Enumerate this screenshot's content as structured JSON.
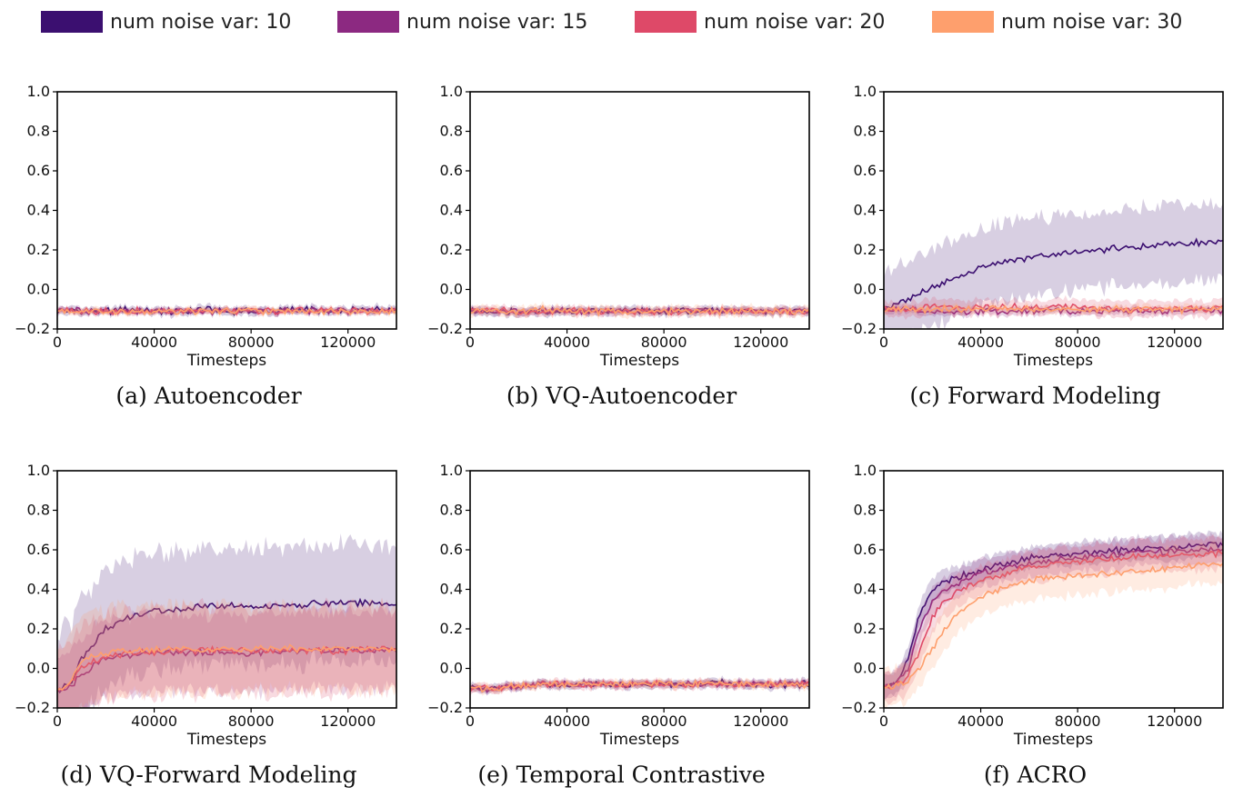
{
  "legend": {
    "items": [
      {
        "label": "num noise var: 10",
        "color": "#3b0f70"
      },
      {
        "label": "num noise var: 15",
        "color": "#8c2981"
      },
      {
        "label": "num noise var: 20",
        "color": "#de4968"
      },
      {
        "label": "num noise var: 30",
        "color": "#fe9f6d"
      }
    ]
  },
  "chart_data": [
    {
      "type": "line",
      "caption": "(a) Autoencoder",
      "xlabel": "Timesteps",
      "xlim": [
        0,
        140000
      ],
      "ylim": [
        -0.2,
        1.0
      ],
      "xticks": [
        "0",
        "40000",
        "80000",
        "120000"
      ],
      "yticks": [
        "1.0",
        "0.8",
        "0.6",
        "0.4",
        "0.2",
        "0.0",
        "−0.2"
      ],
      "x": [
        0,
        10000,
        20000,
        30000,
        40000,
        50000,
        60000,
        70000,
        80000,
        90000,
        100000,
        110000,
        120000,
        130000,
        140000
      ],
      "series": [
        {
          "values": [
            -0.11,
            -0.11,
            -0.11,
            -0.1,
            -0.11,
            -0.11,
            -0.1,
            -0.11,
            -0.11,
            -0.11,
            -0.1,
            -0.11,
            -0.11,
            -0.1,
            -0.1
          ],
          "band": 0.02
        },
        {
          "values": [
            -0.11,
            -0.11,
            -0.11,
            -0.11,
            -0.11,
            -0.11,
            -0.11,
            -0.11,
            -0.11,
            -0.11,
            -0.11,
            -0.11,
            -0.11,
            -0.11,
            -0.11
          ],
          "band": 0.015
        },
        {
          "values": [
            -0.11,
            -0.11,
            -0.11,
            -0.11,
            -0.11,
            -0.11,
            -0.11,
            -0.11,
            -0.11,
            -0.11,
            -0.11,
            -0.11,
            -0.11,
            -0.11,
            -0.11
          ],
          "band": 0.015
        },
        {
          "values": [
            -0.11,
            -0.11,
            -0.11,
            -0.11,
            -0.11,
            -0.11,
            -0.11,
            -0.11,
            -0.11,
            -0.11,
            -0.11,
            -0.11,
            -0.11,
            -0.11,
            -0.11
          ],
          "band": 0.015
        }
      ]
    },
    {
      "type": "line",
      "caption": "(b) VQ-Autoencoder",
      "xlabel": "Timesteps",
      "xlim": [
        0,
        140000
      ],
      "ylim": [
        -0.2,
        1.0
      ],
      "xticks": [
        "0",
        "40000",
        "80000",
        "120000"
      ],
      "yticks": [
        "1.0",
        "0.8",
        "0.6",
        "0.4",
        "0.2",
        "0.0",
        "−0.2"
      ],
      "x": [
        0,
        10000,
        20000,
        30000,
        40000,
        50000,
        60000,
        70000,
        80000,
        90000,
        100000,
        110000,
        120000,
        130000,
        140000
      ],
      "series": [
        {
          "values": [
            -0.11,
            -0.11,
            -0.11,
            -0.11,
            -0.11,
            -0.1,
            -0.11,
            -0.11,
            -0.11,
            -0.11,
            -0.11,
            -0.1,
            -0.11,
            -0.11,
            -0.11
          ],
          "band": 0.02
        },
        {
          "values": [
            -0.11,
            -0.11,
            -0.11,
            -0.11,
            -0.11,
            -0.11,
            -0.11,
            -0.11,
            -0.11,
            -0.11,
            -0.11,
            -0.11,
            -0.11,
            -0.11,
            -0.11
          ],
          "band": 0.02
        },
        {
          "values": [
            -0.11,
            -0.11,
            -0.11,
            -0.11,
            -0.11,
            -0.11,
            -0.11,
            -0.11,
            -0.11,
            -0.11,
            -0.11,
            -0.11,
            -0.11,
            -0.11,
            -0.11
          ],
          "band": 0.02
        },
        {
          "values": [
            -0.11,
            -0.11,
            -0.11,
            -0.1,
            -0.11,
            -0.11,
            -0.11,
            -0.11,
            -0.11,
            -0.11,
            -0.11,
            -0.11,
            -0.11,
            -0.11,
            -0.11
          ],
          "band": 0.025
        }
      ]
    },
    {
      "type": "line",
      "caption": "(c) Forward Modeling",
      "xlabel": "Timesteps",
      "xlim": [
        0,
        140000
      ],
      "ylim": [
        -0.2,
        1.0
      ],
      "xticks": [
        "0",
        "40000",
        "80000",
        "120000"
      ],
      "yticks": [
        "1.0",
        "0.8",
        "0.6",
        "0.4",
        "0.2",
        "0.0",
        "−0.2"
      ],
      "x": [
        0,
        10000,
        20000,
        30000,
        40000,
        50000,
        60000,
        70000,
        80000,
        90000,
        100000,
        110000,
        120000,
        130000,
        140000
      ],
      "series": [
        {
          "values": [
            -0.1,
            -0.05,
            0.01,
            0.06,
            0.11,
            0.14,
            0.16,
            0.18,
            0.19,
            0.2,
            0.21,
            0.22,
            0.23,
            0.24,
            0.25
          ],
          "band": 0.2
        },
        {
          "values": [
            -0.1,
            -0.1,
            -0.11,
            -0.11,
            -0.11,
            -0.11,
            -0.11,
            -0.11,
            -0.11,
            -0.11,
            -0.11,
            -0.11,
            -0.11,
            -0.11,
            -0.11
          ],
          "band": 0.02
        },
        {
          "values": [
            -0.1,
            -0.1,
            -0.09,
            -0.09,
            -0.09,
            -0.09,
            -0.09,
            -0.09,
            -0.09,
            -0.09,
            -0.1,
            -0.1,
            -0.1,
            -0.1,
            -0.1
          ],
          "band": 0.04
        },
        {
          "values": [
            -0.1,
            -0.1,
            -0.1,
            -0.1,
            -0.09,
            -0.1,
            -0.1,
            -0.1,
            -0.1,
            -0.1,
            -0.1,
            -0.1,
            -0.1,
            -0.1,
            -0.1
          ],
          "band": 0.02
        }
      ]
    },
    {
      "type": "line",
      "caption": "(d) VQ-Forward Modeling",
      "xlabel": "Timesteps",
      "xlim": [
        0,
        140000
      ],
      "ylim": [
        -0.2,
        1.0
      ],
      "xticks": [
        "0",
        "40000",
        "80000",
        "120000"
      ],
      "yticks": [
        "1.0",
        "0.8",
        "0.6",
        "0.4",
        "0.2",
        "0.0",
        "−0.2"
      ],
      "x": [
        0,
        5000,
        10000,
        20000,
        30000,
        40000,
        50000,
        60000,
        70000,
        80000,
        90000,
        100000,
        110000,
        120000,
        130000,
        140000
      ],
      "series": [
        {
          "values": [
            -0.11,
            -0.09,
            0.05,
            0.2,
            0.26,
            0.29,
            0.3,
            0.31,
            0.32,
            0.31,
            0.32,
            0.32,
            0.33,
            0.33,
            0.33,
            0.32
          ],
          "band": 0.3
        },
        {
          "values": [
            -0.11,
            -0.1,
            -0.03,
            0.05,
            0.07,
            0.08,
            0.08,
            0.08,
            0.08,
            0.08,
            0.09,
            0.09,
            0.09,
            0.09,
            0.09,
            0.09
          ],
          "band": 0.2
        },
        {
          "values": [
            -0.11,
            -0.09,
            0.01,
            0.06,
            0.08,
            0.08,
            0.09,
            0.09,
            0.09,
            0.09,
            0.09,
            0.09,
            0.09,
            0.09,
            0.1,
            0.1
          ],
          "band": 0.22
        },
        {
          "values": [
            -0.11,
            -0.08,
            0.04,
            0.08,
            0.09,
            0.09,
            0.1,
            0.09,
            0.1,
            0.1,
            0.1,
            0.1,
            0.1,
            0.1,
            0.1,
            0.1
          ],
          "band": 0.22
        }
      ]
    },
    {
      "type": "line",
      "caption": "(e) Temporal Contrastive",
      "xlabel": "Timesteps",
      "xlim": [
        0,
        140000
      ],
      "ylim": [
        -0.2,
        1.0
      ],
      "xticks": [
        "0",
        "40000",
        "80000",
        "120000"
      ],
      "yticks": [
        "1.0",
        "0.8",
        "0.6",
        "0.4",
        "0.2",
        "0.0",
        "−0.2"
      ],
      "x": [
        0,
        10000,
        20000,
        30000,
        40000,
        50000,
        60000,
        70000,
        80000,
        90000,
        100000,
        110000,
        120000,
        130000,
        140000
      ],
      "series": [
        {
          "values": [
            -0.1,
            -0.1,
            -0.09,
            -0.08,
            -0.08,
            -0.08,
            -0.08,
            -0.08,
            -0.08,
            -0.08,
            -0.07,
            -0.08,
            -0.08,
            -0.08,
            -0.08
          ],
          "band": 0.02
        },
        {
          "values": [
            -0.1,
            -0.1,
            -0.09,
            -0.08,
            -0.08,
            -0.08,
            -0.08,
            -0.08,
            -0.08,
            -0.08,
            -0.08,
            -0.08,
            -0.08,
            -0.08,
            -0.08
          ],
          "band": 0.02
        },
        {
          "values": [
            -0.1,
            -0.1,
            -0.09,
            -0.08,
            -0.08,
            -0.08,
            -0.08,
            -0.08,
            -0.08,
            -0.08,
            -0.08,
            -0.08,
            -0.08,
            -0.08,
            -0.07
          ],
          "band": 0.02
        },
        {
          "values": [
            -0.1,
            -0.1,
            -0.09,
            -0.08,
            -0.08,
            -0.07,
            -0.08,
            -0.08,
            -0.08,
            -0.08,
            -0.08,
            -0.08,
            -0.08,
            -0.08,
            -0.08
          ],
          "band": 0.02
        }
      ]
    },
    {
      "type": "line",
      "caption": "(f) ACRO",
      "xlabel": "Timesteps",
      "xlim": [
        0,
        140000
      ],
      "ylim": [
        -0.2,
        1.0
      ],
      "xticks": [
        "0",
        "40000",
        "80000",
        "120000"
      ],
      "yticks": [
        "1.0",
        "0.8",
        "0.6",
        "0.4",
        "0.2",
        "0.0",
        "−0.2"
      ],
      "x": [
        0,
        5000,
        10000,
        15000,
        20000,
        25000,
        30000,
        40000,
        50000,
        60000,
        70000,
        80000,
        90000,
        100000,
        110000,
        120000,
        130000,
        140000
      ],
      "series": [
        {
          "values": [
            -0.09,
            -0.08,
            0.05,
            0.28,
            0.4,
            0.44,
            0.46,
            0.5,
            0.53,
            0.56,
            0.57,
            0.58,
            0.59,
            0.6,
            0.61,
            0.61,
            0.62,
            0.63
          ],
          "band": 0.06
        },
        {
          "values": [
            -0.09,
            -0.08,
            0.0,
            0.2,
            0.34,
            0.4,
            0.43,
            0.48,
            0.51,
            0.53,
            0.55,
            0.56,
            0.57,
            0.58,
            0.59,
            0.59,
            0.6,
            0.6
          ],
          "band": 0.07
        },
        {
          "values": [
            -0.09,
            -0.09,
            -0.04,
            0.1,
            0.26,
            0.34,
            0.39,
            0.45,
            0.48,
            0.51,
            0.53,
            0.54,
            0.55,
            0.56,
            0.57,
            0.57,
            0.58,
            0.58
          ],
          "band": 0.08
        },
        {
          "values": [
            -0.09,
            -0.09,
            -0.06,
            0.01,
            0.1,
            0.2,
            0.28,
            0.36,
            0.41,
            0.44,
            0.46,
            0.47,
            0.48,
            0.49,
            0.5,
            0.51,
            0.52,
            0.52
          ],
          "band": 0.1
        }
      ]
    }
  ]
}
